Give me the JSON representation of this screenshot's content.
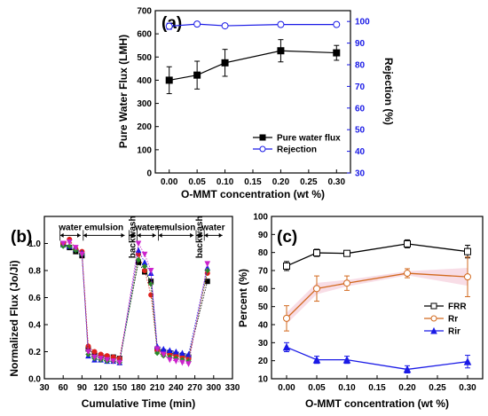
{
  "chart_data": [
    {
      "id": "a",
      "type": "line",
      "panel_label": "(a)",
      "xlabel": "O-MMT concentration (wt %)",
      "ylabel": "Pure Water Flux (LMH)",
      "y2label": "Rejection (%)",
      "x": [
        0.0,
        0.05,
        0.1,
        0.2,
        0.3
      ],
      "x_ticks": [
        "0.00",
        "0.05",
        "0.10",
        "0.15",
        "0.20",
        "0.25",
        "0.30"
      ],
      "xlim": [
        -0.025,
        0.325
      ],
      "ylim": [
        0,
        700
      ],
      "y_ticks": [
        "0",
        "100",
        "200",
        "300",
        "400",
        "500",
        "600",
        "700"
      ],
      "y2lim": [
        30,
        105
      ],
      "y2_ticks": [
        "30",
        "40",
        "50",
        "60",
        "70",
        "80",
        "90",
        "100"
      ],
      "series": [
        {
          "name": "Pure water flux",
          "axis": "left",
          "color": "#000000",
          "marker": "square-filled",
          "values": [
            400,
            422,
            475,
            527,
            518
          ],
          "errors": [
            58,
            60,
            58,
            48,
            32
          ]
        },
        {
          "name": "Rejection",
          "axis": "right",
          "color": "#1a1ae6",
          "marker": "circle-open",
          "values": [
            97.8,
            98.8,
            98.0,
            98.6,
            98.6
          ],
          "errors": [
            1.4,
            0.6,
            0.9,
            0.5,
            0.5
          ]
        }
      ],
      "legend": "lower-right"
    },
    {
      "id": "b",
      "type": "scatter",
      "panel_label": "(b)",
      "xlabel": "Cumulative Time (min)",
      "ylabel": "Normalized Flux (Jo/Ji)",
      "xlim": [
        30,
        330
      ],
      "x_ticks": [
        "30",
        "60",
        "90",
        "120",
        "150",
        "180",
        "210",
        "240",
        "270",
        "300",
        "330"
      ],
      "ylim": [
        0,
        1.2
      ],
      "y_ticks": [
        "0.0",
        "0.2",
        "0.4",
        "0.6",
        "0.8",
        "1.0"
      ],
      "segments": [
        {
          "label": "water",
          "from": 55,
          "to": 88
        },
        {
          "label": "emulsion",
          "from": 92,
          "to": 158
        },
        {
          "label": "backwash",
          "from": 165,
          "to": 176
        },
        {
          "label": "water",
          "from": 178,
          "to": 208
        },
        {
          "label": "emulsion",
          "from": 212,
          "to": 268
        },
        {
          "label": "backwash",
          "from": 272,
          "to": 283
        },
        {
          "label": "water",
          "from": 285,
          "to": 314
        }
      ],
      "series": [
        {
          "color": "#000000",
          "marker": "square",
          "x": [
            60,
            70,
            80,
            90,
            100,
            110,
            120,
            130,
            140,
            150,
            180,
            190,
            200,
            210,
            220,
            230,
            240,
            250,
            260,
            290
          ],
          "y": [
            1.0,
            0.97,
            0.94,
            0.91,
            0.22,
            0.18,
            0.17,
            0.16,
            0.16,
            0.15,
            0.86,
            0.79,
            0.72,
            0.22,
            0.2,
            0.19,
            0.18,
            0.17,
            0.16,
            0.72
          ]
        },
        {
          "color": "#e0201c",
          "marker": "circle",
          "x": [
            60,
            70,
            80,
            90,
            100,
            110,
            120,
            130,
            140,
            150,
            180,
            190,
            200,
            210,
            220,
            230,
            240,
            250,
            260,
            290
          ],
          "y": [
            1.0,
            1.03,
            0.96,
            0.94,
            0.24,
            0.2,
            0.18,
            0.17,
            0.16,
            0.15,
            0.92,
            0.8,
            0.62,
            0.21,
            0.19,
            0.18,
            0.17,
            0.16,
            0.15,
            0.78
          ]
        },
        {
          "color": "#1a1ae6",
          "marker": "triangle",
          "x": [
            60,
            70,
            80,
            90,
            100,
            110,
            120,
            130,
            140,
            150,
            180,
            190,
            200,
            210,
            220,
            230,
            240,
            250,
            260,
            290
          ],
          "y": [
            0.99,
            0.98,
            0.96,
            0.93,
            0.17,
            0.14,
            0.14,
            0.13,
            0.13,
            0.12,
            0.95,
            0.86,
            0.78,
            0.24,
            0.22,
            0.21,
            0.2,
            0.19,
            0.18,
            0.82
          ]
        },
        {
          "color": "#2a8a2a",
          "marker": "diamond",
          "x": [
            60,
            70,
            80,
            90,
            100,
            110,
            120,
            130,
            140,
            150,
            180,
            190,
            200,
            210,
            220,
            230,
            240,
            250,
            260,
            290
          ],
          "y": [
            0.98,
            0.98,
            0.95,
            0.92,
            0.18,
            0.15,
            0.14,
            0.13,
            0.13,
            0.12,
            0.88,
            0.83,
            0.7,
            0.19,
            0.17,
            0.16,
            0.15,
            0.14,
            0.13,
            0.8
          ]
        },
        {
          "color": "#cc22cc",
          "marker": "triangle-down",
          "x": [
            60,
            70,
            80,
            90,
            100,
            110,
            120,
            130,
            140,
            150,
            180,
            190,
            200,
            210,
            220,
            230,
            240,
            250,
            260,
            290
          ],
          "y": [
            1.0,
            1.01,
            0.97,
            0.92,
            0.2,
            0.16,
            0.15,
            0.14,
            0.13,
            0.12,
            1.0,
            0.92,
            0.8,
            0.22,
            0.18,
            0.14,
            0.13,
            0.12,
            0.11,
            0.85
          ]
        }
      ]
    },
    {
      "id": "c",
      "type": "line",
      "panel_label": "(c)",
      "xlabel": "O-MMT concentration (wt %)",
      "ylabel": "Percent (%)",
      "x": [
        0.0,
        0.05,
        0.1,
        0.2,
        0.3
      ],
      "x_ticks": [
        "0.00",
        "0.05",
        "0.10",
        "0.15",
        "0.20",
        "0.25",
        "0.30"
      ],
      "xlim": [
        -0.025,
        0.325
      ],
      "ylim": [
        10,
        100
      ],
      "y_ticks": [
        "10",
        "20",
        "30",
        "40",
        "50",
        "60",
        "70",
        "80",
        "90",
        "100"
      ],
      "series": [
        {
          "name": "FRR",
          "color": "#000000",
          "marker": "square-open",
          "values": [
            72.5,
            79.8,
            79.5,
            84.8,
            80.5
          ],
          "errors": [
            2.5,
            2,
            1.5,
            2.2,
            3.5
          ]
        },
        {
          "name": "Rr",
          "color": "#d2691e",
          "marker": "circle-open",
          "values": [
            43.5,
            60,
            63,
            68.5,
            66.5
          ],
          "errors": [
            7,
            7,
            4,
            2.5,
            11
          ]
        },
        {
          "name": "Rir",
          "color": "#1a1ae6",
          "marker": "triangle-filled",
          "values": [
            27.5,
            20.5,
            20.5,
            15.2,
            19.5
          ],
          "errors": [
            2.5,
            2,
            2,
            2,
            3.5
          ]
        }
      ],
      "legend": "right"
    }
  ]
}
